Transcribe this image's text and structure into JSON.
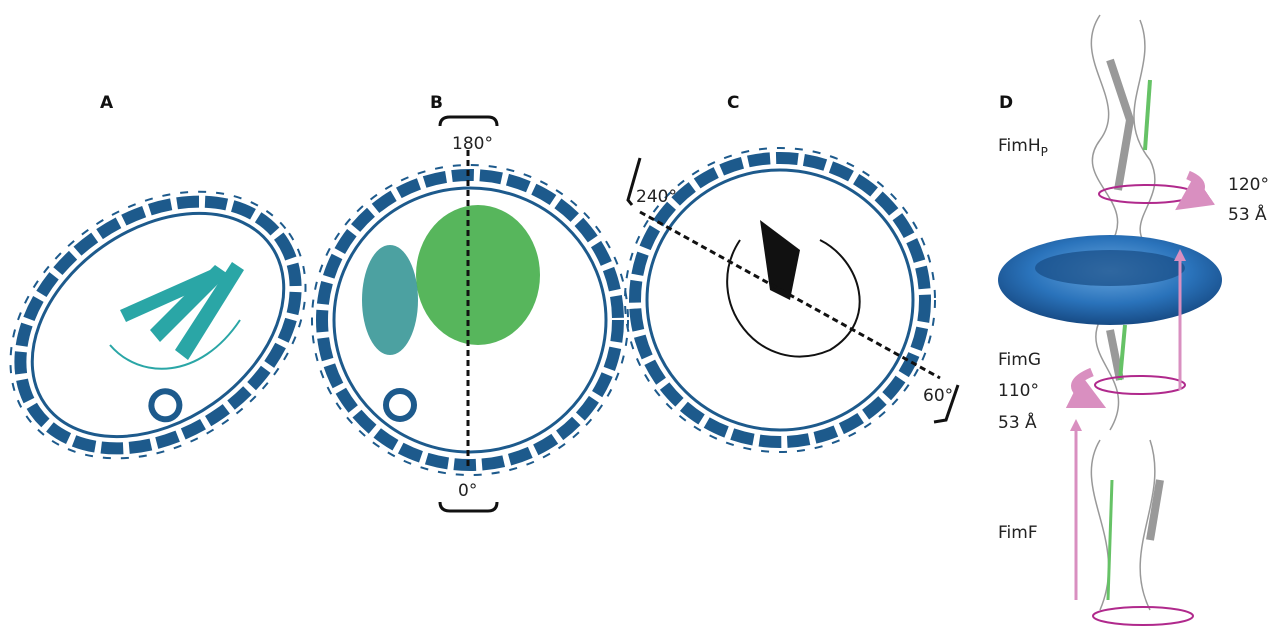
{
  "panels": {
    "a": {
      "label": "A"
    },
    "b": {
      "label": "B",
      "top_angle": "180°",
      "bottom_angle": "0°"
    },
    "c": {
      "label": "C",
      "left_angle": "240°",
      "right_angle": "60°"
    },
    "d": {
      "label": "D",
      "fimh": {
        "name": "FimH",
        "subscript": "P",
        "rotation": "120°",
        "rise": "53 Å"
      },
      "fimg": {
        "name": "FimG",
        "rotation": "110°",
        "rise": "53 Å"
      },
      "fimf": {
        "name": "FimF"
      }
    }
  }
}
